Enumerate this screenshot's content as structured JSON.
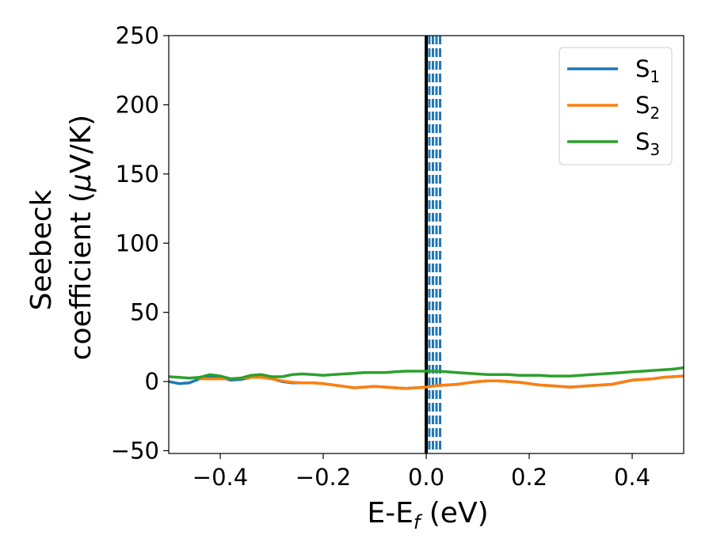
{
  "chart_data": {
    "type": "line",
    "xlabel": {
      "main": "E-E",
      "sub": "f",
      "unit": " (eV)"
    },
    "ylabel": {
      "line1": "Seebeck",
      "line2_main": "coefficient  (",
      "line2_mu": "μ",
      "line2_unit": "V/K)"
    },
    "xlim": [
      -0.5,
      0.5
    ],
    "ylim": [
      -52,
      250
    ],
    "x_ticks": [
      -0.4,
      -0.2,
      0.0,
      0.2,
      0.4
    ],
    "x_tick_labels": [
      "−0.4",
      "−0.2",
      "0.0",
      "0.2",
      "0.4"
    ],
    "y_ticks": [
      -50,
      0,
      50,
      100,
      150,
      200,
      250
    ],
    "y_tick_labels": [
      "−50",
      "0",
      "50",
      "100",
      "150",
      "200",
      "250"
    ],
    "grid": false,
    "legend": "top-right",
    "series": [
      {
        "name": "S",
        "sub": "1",
        "color": "#1f77b4",
        "x": [
          -0.5,
          -0.48,
          -0.46,
          -0.44,
          -0.42,
          -0.4,
          -0.38,
          -0.36,
          -0.34,
          -0.32,
          -0.3,
          -0.28,
          -0.26,
          -0.24,
          -0.22,
          -0.2,
          -0.18,
          -0.16,
          -0.14,
          -0.12,
          -0.1,
          -0.08,
          -0.06,
          -0.04,
          -0.02,
          0.0,
          0.02,
          0.04,
          0.06,
          0.08,
          0.1,
          0.12,
          0.14,
          0.16,
          0.18,
          0.2,
          0.22,
          0.24,
          0.26,
          0.28,
          0.3,
          0.32,
          0.34,
          0.36,
          0.38,
          0.4,
          0.42,
          0.44,
          0.46,
          0.48,
          0.5
        ],
        "y": [
          0,
          -1.5,
          -1,
          2,
          4,
          3,
          1,
          1.5,
          3,
          3.5,
          2,
          0,
          -1,
          -1,
          -1,
          -1.5,
          -2.5,
          -3.5,
          -4.5,
          -4,
          -3.5,
          -4,
          -4.5,
          -5,
          -4.5,
          -4,
          -3,
          -2.5,
          -2,
          -1,
          0,
          0.5,
          0.5,
          0,
          -0.5,
          -1.5,
          -2.5,
          -3,
          -3.5,
          -4,
          -3.5,
          -3,
          -2.5,
          -2,
          -0.5,
          1,
          1.5,
          2,
          3,
          3.5,
          4
        ]
      },
      {
        "name": "S",
        "sub": "2",
        "color": "#ff7f0e",
        "x": [
          -0.44,
          -0.42,
          -0.4,
          -0.38,
          -0.36,
          -0.34,
          -0.32,
          -0.3,
          -0.28,
          -0.26,
          -0.24,
          -0.22,
          -0.2,
          -0.18,
          -0.16,
          -0.14,
          -0.12,
          -0.1,
          -0.08,
          -0.06,
          -0.04,
          -0.02,
          0.0,
          0.02,
          0.04,
          0.06,
          0.08,
          0.1,
          0.12,
          0.14,
          0.16,
          0.18,
          0.2,
          0.22,
          0.24,
          0.26,
          0.28,
          0.3,
          0.32,
          0.34,
          0.36,
          0.38,
          0.4,
          0.42,
          0.44,
          0.46,
          0.48,
          0.5
        ],
        "y": [
          2,
          2,
          2,
          2,
          2.5,
          3,
          3,
          2,
          0.5,
          -0.5,
          -1,
          -1,
          -1.5,
          -2.5,
          -3.5,
          -4.5,
          -4,
          -3.5,
          -4,
          -4.5,
          -5,
          -4.5,
          -4,
          -3,
          -2.5,
          -2,
          -1,
          0,
          0.5,
          0.5,
          0,
          -0.5,
          -1.5,
          -2.5,
          -3,
          -3.5,
          -4,
          -3.5,
          -3,
          -2.5,
          -2,
          -0.5,
          1,
          1.5,
          2,
          3,
          3.5,
          4
        ]
      },
      {
        "name": "S",
        "sub": "3",
        "color": "#2ca02c",
        "x": [
          -0.5,
          -0.48,
          -0.46,
          -0.44,
          -0.42,
          -0.4,
          -0.38,
          -0.36,
          -0.34,
          -0.32,
          -0.3,
          -0.28,
          -0.26,
          -0.24,
          -0.22,
          -0.2,
          -0.18,
          -0.16,
          -0.14,
          -0.12,
          -0.1,
          -0.08,
          -0.06,
          -0.04,
          -0.02,
          0.0,
          0.02,
          0.04,
          0.06,
          0.08,
          0.1,
          0.12,
          0.14,
          0.16,
          0.18,
          0.2,
          0.22,
          0.24,
          0.26,
          0.28,
          0.3,
          0.32,
          0.34,
          0.36,
          0.38,
          0.4,
          0.42,
          0.44,
          0.46,
          0.48,
          0.5
        ],
        "y": [
          3.5,
          3,
          2.5,
          3,
          5,
          4,
          2,
          2.5,
          4.5,
          5,
          3.5,
          3.5,
          5,
          5.5,
          5,
          4.5,
          5,
          5.5,
          6,
          6.5,
          6.5,
          6.5,
          7,
          7.5,
          7.5,
          7.5,
          7.5,
          7,
          6.5,
          6,
          5.5,
          5,
          5,
          5,
          4.5,
          4.5,
          4.5,
          4,
          4,
          4,
          4.5,
          5,
          5.5,
          6,
          6.5,
          7,
          7.5,
          8,
          8.5,
          9,
          10
        ]
      }
    ],
    "reference_lines": [
      {
        "x": 0.0,
        "color": "#000000",
        "style": "solid"
      },
      {
        "x": 0.006,
        "color": "#1f77b4",
        "style": "dashed"
      },
      {
        "x": 0.013,
        "color": "#1f77b4",
        "style": "dashed"
      },
      {
        "x": 0.02,
        "color": "#1f77b4",
        "style": "dashed"
      },
      {
        "x": 0.027,
        "color": "#1f77b4",
        "style": "dashed"
      }
    ]
  }
}
